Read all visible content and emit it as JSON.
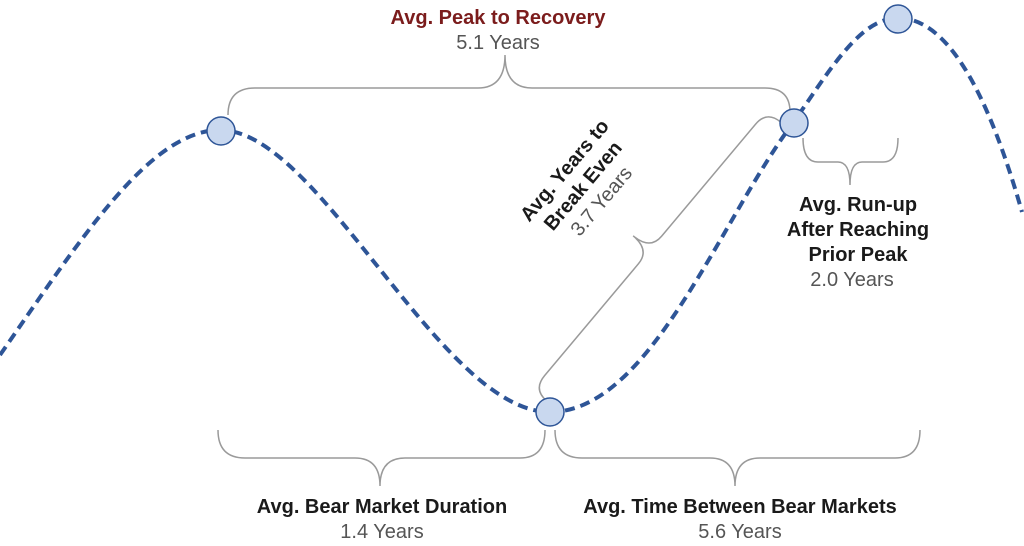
{
  "annotations": [
    {
      "label": "Avg. Peak to Recovery",
      "value": "5.1 Years"
    },
    {
      "label_lines": [
        "Avg. Years to",
        "Break Even"
      ],
      "value": "3.7 Years"
    },
    {
      "label_lines": [
        "Avg. Run-up",
        "After Reaching",
        "Prior Peak"
      ],
      "value": "2.0 Years"
    },
    {
      "label": "Avg. Bear Market Duration",
      "value": "1.4 Years"
    },
    {
      "label": "Avg. Time Between Bear Markets",
      "value": "5.6 Years"
    }
  ]
}
